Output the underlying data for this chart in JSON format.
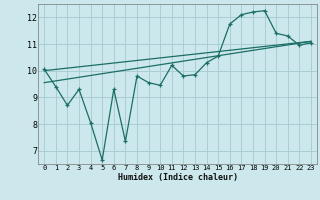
{
  "xlabel": "Humidex (Indice chaleur)",
  "bg_color": "#cce8ec",
  "grid_color": "#aacdd4",
  "line_color": "#1a6e65",
  "xlim": [
    -0.5,
    23.5
  ],
  "ylim": [
    6.5,
    12.5
  ],
  "xticks": [
    0,
    1,
    2,
    3,
    4,
    5,
    6,
    7,
    8,
    9,
    10,
    11,
    12,
    13,
    14,
    15,
    16,
    17,
    18,
    19,
    20,
    21,
    22,
    23
  ],
  "yticks": [
    7,
    8,
    9,
    10,
    11,
    12
  ],
  "series1_x": [
    0,
    1,
    2,
    3,
    4,
    5,
    6,
    7,
    8,
    9,
    10,
    11,
    12,
    13,
    14,
    15,
    16,
    17,
    18,
    19,
    20,
    21,
    22,
    23
  ],
  "series1_y": [
    10.05,
    9.4,
    8.7,
    9.3,
    8.05,
    6.65,
    9.3,
    7.35,
    9.8,
    9.55,
    9.45,
    10.2,
    9.8,
    9.85,
    10.3,
    10.55,
    11.75,
    12.1,
    12.2,
    12.25,
    11.4,
    11.3,
    10.95,
    11.05
  ],
  "trend1_x": [
    0,
    23
  ],
  "trend1_y": [
    9.55,
    11.1
  ],
  "trend2_x": [
    0,
    23
  ],
  "trend2_y": [
    10.0,
    11.1
  ]
}
